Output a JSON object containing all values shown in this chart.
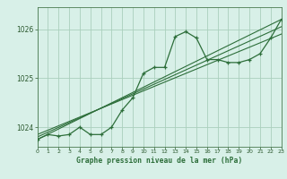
{
  "title": "Graphe pression niveau de la mer (hPa)",
  "bg_color": "#d8f0e8",
  "grid_color": "#aacfbc",
  "line_color": "#2d6e3a",
  "x_min": 0,
  "x_max": 23,
  "y_min": 1023.6,
  "y_max": 1026.45,
  "y_ticks": [
    1024,
    1025,
    1026
  ],
  "x_ticks": [
    0,
    1,
    2,
    3,
    4,
    5,
    6,
    7,
    8,
    9,
    10,
    11,
    12,
    13,
    14,
    15,
    16,
    17,
    18,
    19,
    20,
    21,
    22,
    23
  ],
  "main_data": [
    [
      0,
      1023.75
    ],
    [
      1,
      1023.85
    ],
    [
      2,
      1023.82
    ],
    [
      3,
      1023.85
    ],
    [
      4,
      1024.0
    ],
    [
      5,
      1023.85
    ],
    [
      6,
      1023.85
    ],
    [
      7,
      1024.0
    ],
    [
      8,
      1024.35
    ],
    [
      9,
      1024.6
    ],
    [
      10,
      1025.1
    ],
    [
      11,
      1025.22
    ],
    [
      12,
      1025.22
    ],
    [
      13,
      1025.85
    ],
    [
      14,
      1025.95
    ],
    [
      15,
      1025.82
    ],
    [
      16,
      1025.38
    ],
    [
      17,
      1025.38
    ],
    [
      18,
      1025.32
    ],
    [
      19,
      1025.32
    ],
    [
      20,
      1025.38
    ],
    [
      21,
      1025.5
    ],
    [
      22,
      1025.82
    ],
    [
      23,
      1026.2
    ]
  ],
  "trend_lines": [
    [
      [
        0,
        1023.75
      ],
      [
        23,
        1026.2
      ]
    ],
    [
      [
        0,
        1023.8
      ],
      [
        23,
        1026.05
      ]
    ],
    [
      [
        0,
        1023.85
      ],
      [
        23,
        1025.9
      ]
    ]
  ],
  "figsize": [
    3.2,
    2.0
  ],
  "dpi": 100
}
